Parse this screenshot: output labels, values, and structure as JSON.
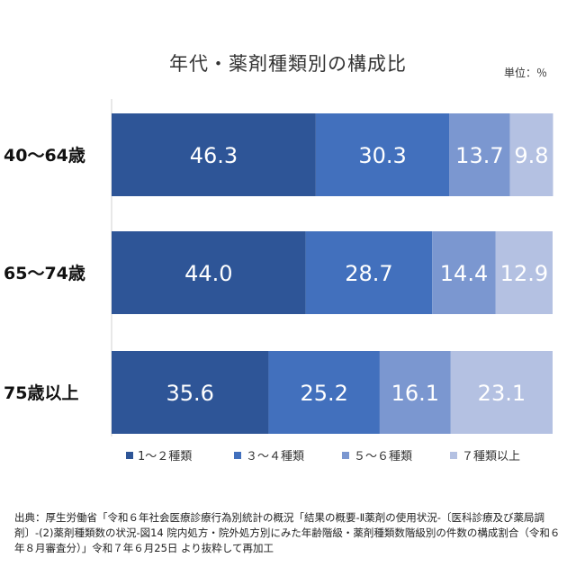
{
  "unit_label": "単位：％",
  "source": "出典：厚生労働省「令和６年社会医療診療行為別統計の概況「結果の概要-Ⅱ薬剤の使用状況-〔医科診療及び薬局調剤〕-(2)薬剤種類数の状況-図14 院内処方・院外処方別にみた年齢階級・薬剤種類数階級別の件数の構成割合（令和６年８月審査分）」令和７年６月25日 より抜粋して再加工",
  "chart_data": {
    "type": "bar",
    "orientation": "horizontal",
    "stacked": true,
    "title": "年代・薬剤種類別の構成比",
    "categories": [
      "40〜64歳",
      "65〜74歳",
      "75歳以上"
    ],
    "series": [
      {
        "name": "1〜２種類",
        "values": [
          46.3,
          44.0,
          35.6
        ],
        "color": "#2e5597"
      },
      {
        "name": "３〜４種類",
        "values": [
          30.3,
          28.7,
          25.2
        ],
        "color": "#4270bd"
      },
      {
        "name": "５〜６種類",
        "values": [
          13.7,
          14.4,
          16.1
        ],
        "color": "#7b97d0"
      },
      {
        "name": "７種類以上",
        "values": [
          9.8,
          12.9,
          23.1
        ],
        "color": "#b4c1e2"
      }
    ],
    "value_labels": [
      [
        "46.3",
        "30.3",
        "13.7",
        "9.8"
      ],
      [
        "44.0",
        "28.7",
        "14.4",
        "12.9"
      ],
      [
        "35.6",
        "25.2",
        "16.1",
        "23.1"
      ]
    ],
    "xlim": [
      0,
      100
    ],
    "grid": false,
    "legend_position": "bottom"
  }
}
